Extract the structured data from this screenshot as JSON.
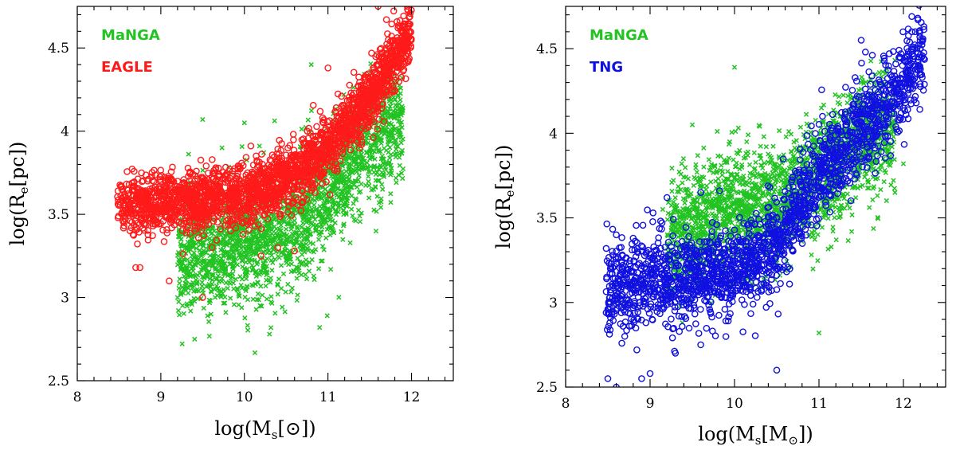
{
  "chart_data": [
    {
      "type": "scatter",
      "panel": "left",
      "xlabel": "log(M_s[⊙])",
      "xlabel_parts": {
        "prefix": "log(M",
        "sub": "s",
        "suffix": "[⊙])"
      },
      "ylabel": "log(R_e[pc])",
      "ylabel_parts": {
        "prefix": "log(R",
        "sub": "e",
        "suffix": "[pc])"
      },
      "xlim": [
        8,
        12.5
      ],
      "ylim": [
        2.5,
        4.75
      ],
      "xticks": [
        8,
        9,
        10,
        11,
        12
      ],
      "xtick_labels": [
        "8",
        "9",
        "10",
        "11",
        "12"
      ],
      "yticks": [
        2.5,
        3,
        3.5,
        4,
        4.5
      ],
      "ytick_labels": [
        "2.5",
        "3",
        "3.5",
        "4",
        "4.5"
      ],
      "series": [
        {
          "name": "MaNGA",
          "color": "#22c322",
          "marker": "x",
          "count": 2200,
          "x_range": [
            9.2,
            11.9
          ],
          "trend": [
            [
              9.2,
              3.2
            ],
            [
              9.5,
              3.3
            ],
            [
              10.0,
              3.35
            ],
            [
              10.5,
              3.4
            ],
            [
              11.0,
              3.65
            ],
            [
              11.5,
              3.95
            ],
            [
              11.9,
              4.1
            ]
          ],
          "scatter": 0.18,
          "outliers": [
            [
              9.5,
              4.07
            ],
            [
              10.0,
              4.05
            ],
            [
              10.9,
              2.82
            ],
            [
              10.3,
              2.78
            ],
            [
              10.8,
              4.4
            ],
            [
              11.6,
              4.3
            ],
            [
              9.2,
              3.0
            ],
            [
              9.6,
              2.9
            ]
          ]
        },
        {
          "name": "EAGLE",
          "color": "#ff1a1a",
          "marker": "o",
          "count": 2400,
          "x_range": [
            8.48,
            12.0
          ],
          "trend": [
            [
              8.5,
              3.56
            ],
            [
              9.0,
              3.56
            ],
            [
              9.5,
              3.58
            ],
            [
              10.0,
              3.62
            ],
            [
              10.5,
              3.7
            ],
            [
              11.0,
              3.9
            ],
            [
              11.5,
              4.2
            ],
            [
              12.0,
              4.6
            ]
          ],
          "scatter": 0.09,
          "outliers": [
            [
              8.7,
              3.18
            ],
            [
              8.75,
              3.18
            ],
            [
              9.5,
              3.0
            ],
            [
              11.0,
              4.38
            ],
            [
              11.6,
              4.75
            ],
            [
              11.95,
              4.75
            ],
            [
              11.7,
              4.67
            ],
            [
              9.1,
              3.1
            ],
            [
              10.2,
              3.25
            ],
            [
              10.4,
              3.3
            ],
            [
              10.6,
              3.28
            ]
          ]
        }
      ],
      "legend": [
        {
          "label": "MaNGA",
          "color": "#22c322"
        },
        {
          "label": "EAGLE",
          "color": "#ff1a1a"
        }
      ],
      "legend_placement": "top-left"
    },
    {
      "type": "scatter",
      "panel": "right",
      "xlabel": "log(M_s[M_⊙])",
      "xlabel_parts": {
        "prefix": "log(M",
        "sub": "s",
        "mid": "[M",
        "sub2": "⊙",
        "suffix": "])"
      },
      "ylabel": "log(R_e[pc])",
      "ylabel_parts": {
        "prefix": "log(R",
        "sub": "e",
        "suffix": "[pc])"
      },
      "xlim": [
        8,
        12.5
      ],
      "ylim": [
        2.5,
        4.75
      ],
      "xticks": [
        8,
        9,
        10,
        11,
        12
      ],
      "xtick_labels": [
        "8",
        "9",
        "10",
        "11",
        "12"
      ],
      "yticks": [
        2.5,
        3,
        3.5,
        4,
        4.5
      ],
      "ytick_labels": [
        "2.5",
        "3",
        "3.5",
        "4",
        "4.5"
      ],
      "series": [
        {
          "name": "MaNGA",
          "color": "#22c322",
          "marker": "x",
          "count": 2200,
          "x_range": [
            9.2,
            11.9
          ],
          "trend": [
            [
              9.2,
              3.35
            ],
            [
              9.5,
              3.45
            ],
            [
              10.0,
              3.55
            ],
            [
              10.5,
              3.6
            ],
            [
              11.0,
              3.75
            ],
            [
              11.5,
              3.95
            ],
            [
              11.9,
              4.05
            ]
          ],
          "scatter": 0.17,
          "outliers": [
            [
              9.3,
              3.45
            ],
            [
              9.15,
              3.55
            ],
            [
              10.0,
              4.39
            ],
            [
              11.2,
              3.63
            ],
            [
              11.0,
              2.82
            ],
            [
              9.5,
              4.05
            ],
            [
              11.5,
              4.3
            ],
            [
              11.9,
              3.65
            ],
            [
              12.0,
              3.82
            ]
          ]
        },
        {
          "name": "TNG",
          "color": "#1010e0",
          "marker": "o",
          "count": 2000,
          "x_range": [
            8.48,
            12.25
          ],
          "trend": [
            [
              8.5,
              3.1
            ],
            [
              9.0,
              3.12
            ],
            [
              9.5,
              3.15
            ],
            [
              10.0,
              3.18
            ],
            [
              10.5,
              3.35
            ],
            [
              11.0,
              3.75
            ],
            [
              11.5,
              4.0
            ],
            [
              12.0,
              4.3
            ],
            [
              12.25,
              4.5
            ]
          ],
          "scatter": 0.13,
          "outliers": [
            [
              8.5,
              2.55
            ],
            [
              8.6,
              2.5
            ],
            [
              8.9,
              2.55
            ],
            [
              9.0,
              2.58
            ],
            [
              9.3,
              2.7
            ],
            [
              10.5,
              2.6
            ],
            [
              12.0,
              4.77
            ],
            [
              12.1,
              4.6
            ],
            [
              12.2,
              4.5
            ],
            [
              8.7,
              2.8
            ],
            [
              9.6,
              2.75
            ],
            [
              8.6,
              3.4
            ],
            [
              8.8,
              3.38
            ],
            [
              9.2,
              3.62
            ],
            [
              9.6,
              3.65
            ],
            [
              11.5,
              4.55
            ],
            [
              11.55,
              4.48
            ]
          ]
        }
      ],
      "legend": [
        {
          "label": "MaNGA",
          "color": "#22c322"
        },
        {
          "label": "TNG",
          "color": "#1010e0"
        }
      ],
      "legend_placement": "top-left"
    }
  ]
}
